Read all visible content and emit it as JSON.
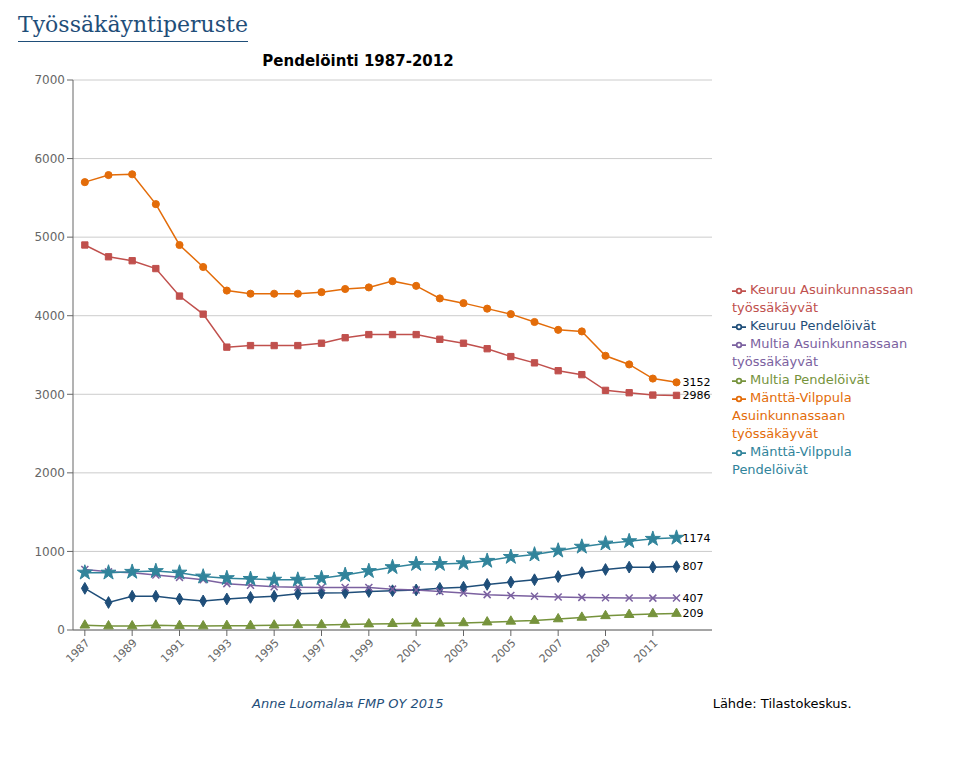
{
  "chart_data": {
    "type": "line",
    "title": "Pendelöinti 1987-2012",
    "subtitle": "Työssäkäyntiperuste",
    "x": [
      1987,
      1988,
      1989,
      1990,
      1991,
      1992,
      1993,
      1994,
      1995,
      1996,
      1997,
      1998,
      1999,
      2000,
      2001,
      2002,
      2003,
      2004,
      2005,
      2006,
      2007,
      2008,
      2009,
      2010,
      2011,
      2012
    ],
    "series": [
      {
        "name": "Keuruu Pendelöivät",
        "color": "#1F4E79",
        "marker": "diamond",
        "values": [
          530,
          350,
          430,
          430,
          395,
          370,
          395,
          415,
          430,
          460,
          470,
          475,
          490,
          500,
          510,
          530,
          545,
          580,
          610,
          640,
          680,
          730,
          770,
          800,
          800,
          807
        ]
      },
      {
        "name": "Keuruu Asuinkunnassaan työssäkäyvät",
        "color": "#C0504D",
        "marker": "square",
        "values": [
          4900,
          4750,
          4700,
          4600,
          4250,
          4020,
          3600,
          3620,
          3620,
          3620,
          3650,
          3720,
          3760,
          3760,
          3760,
          3700,
          3650,
          3580,
          3480,
          3400,
          3300,
          3250,
          3050,
          3020,
          2990,
          2986
        ]
      },
      {
        "name": "Multia Pendelöivät",
        "color": "#76933C",
        "marker": "triangle",
        "values": [
          60,
          50,
          50,
          60,
          55,
          50,
          55,
          55,
          60,
          65,
          65,
          70,
          75,
          80,
          85,
          85,
          90,
          100,
          110,
          120,
          140,
          160,
          180,
          195,
          205,
          209
        ]
      },
      {
        "name": "Multia Asuinkunnassaan työssäkäyvät",
        "color": "#7B61A0",
        "marker": "x",
        "values": [
          770,
          740,
          730,
          700,
          670,
          640,
          590,
          570,
          550,
          545,
          540,
          540,
          540,
          520,
          510,
          490,
          470,
          450,
          440,
          430,
          420,
          415,
          410,
          408,
          406,
          407
        ]
      },
      {
        "name": "Mänttä-Vilppula Pendelöivät",
        "color": "#31849B",
        "marker": "star",
        "values": [
          730,
          730,
          740,
          750,
          730,
          680,
          660,
          650,
          640,
          640,
          660,
          700,
          750,
          800,
          840,
          840,
          850,
          880,
          930,
          960,
          1010,
          1060,
          1100,
          1130,
          1160,
          1174
        ]
      },
      {
        "name": "Mänttä-Vilppula Asuinkunnassaan työssäkäyvät",
        "color": "#E36C09",
        "marker": "circle",
        "values": [
          5700,
          5790,
          5800,
          5420,
          4900,
          4620,
          4320,
          4280,
          4280,
          4280,
          4300,
          4340,
          4360,
          4440,
          4380,
          4220,
          4160,
          4090,
          4020,
          3920,
          3820,
          3800,
          3490,
          3380,
          3200,
          3152
        ]
      }
    ],
    "xlim": [
      1986.5,
      2013.5
    ],
    "xticks": [
      1987,
      1989,
      1991,
      1993,
      1995,
      1997,
      1999,
      2001,
      2003,
      2005,
      2007,
      2009,
      2011
    ],
    "ylim": [
      0,
      7000
    ],
    "yticks": [
      0,
      1000,
      2000,
      3000,
      4000,
      5000,
      6000,
      7000
    ],
    "grid": true,
    "legend": "right",
    "annotations": [
      {
        "text": "3152",
        "x": 2012,
        "y": 3152
      },
      {
        "text": "2986",
        "x": 2012,
        "y": 2986
      },
      {
        "text": "1174",
        "x": 2012,
        "y": 1174
      },
      {
        "text": "807",
        "x": 2012,
        "y": 807
      },
      {
        "text": "407",
        "x": 2012,
        "y": 407
      },
      {
        "text": "209",
        "x": 2012,
        "y": 209
      },
      {
        "text": "Anne Luomala¤ FMP OY 2015"
      },
      {
        "text": "Lähde: Tilastokeskus."
      }
    ]
  }
}
